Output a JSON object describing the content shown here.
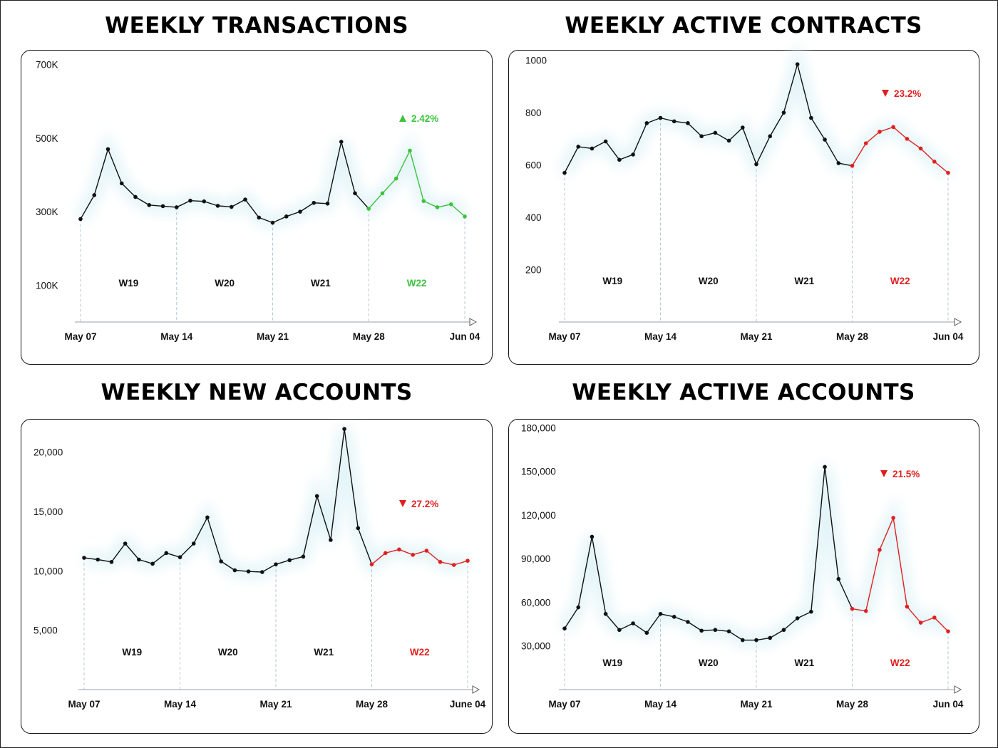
{
  "colors": {
    "line": "#111111",
    "up": "#3cc23c",
    "down": "#e02020",
    "axis": "#aab4c0",
    "week_divider": "#b8c6d6"
  },
  "chart_data": [
    {
      "type": "line",
      "title": "WEEKLY TRANSACTIONS",
      "y_ticks": [
        {
          "value": 700000,
          "label": "700K"
        },
        {
          "value": 500000,
          "label": "500K"
        },
        {
          "value": 300000,
          "label": "300K"
        },
        {
          "value": 100000,
          "label": "100K"
        }
      ],
      "ylim": [
        0,
        740000
      ],
      "x_labels": [
        "May 07",
        "May 14",
        "May 21",
        "May 28",
        "Jun 04"
      ],
      "weeks": [
        "W19",
        "W20",
        "W21",
        "W22"
      ],
      "highlight_week": "W22",
      "change": {
        "direction": "up",
        "text": "2.42%"
      },
      "series": [
        {
          "values": [
            280000,
            345000,
            470000,
            377000,
            340000,
            318000,
            315000,
            312000,
            330000,
            328000,
            316000,
            313000,
            333000,
            284000,
            270000,
            287000,
            300000,
            324000,
            322000,
            490000,
            350000,
            308000,
            350000,
            390000,
            466000,
            329000,
            312000,
            320000,
            287000
          ]
        }
      ]
    },
    {
      "type": "line",
      "title": "WEEKLY ACTIVE CONTRACTS",
      "y_ticks": [
        {
          "value": 1000,
          "label": "1000"
        },
        {
          "value": 800,
          "label": "800"
        },
        {
          "value": 600,
          "label": "600"
        },
        {
          "value": 400,
          "label": "400"
        },
        {
          "value": 200,
          "label": "200"
        }
      ],
      "ylim": [
        0,
        1040
      ],
      "x_labels": [
        "May 07",
        "May 14",
        "May 21",
        "May 28",
        "Jun 04"
      ],
      "weeks": [
        "W19",
        "W20",
        "W21",
        "W22"
      ],
      "highlight_week": "W22",
      "change": {
        "direction": "down",
        "text": "23.2%"
      },
      "series": [
        {
          "values": [
            570,
            670,
            663,
            690,
            620,
            640,
            760,
            780,
            767,
            760,
            710,
            723,
            693,
            743,
            603,
            710,
            800,
            985,
            780,
            697,
            607,
            597,
            683,
            727,
            745,
            700,
            663,
            613,
            570
          ]
        }
      ]
    },
    {
      "type": "line",
      "title": "WEEKLY NEW ACCOUNTS",
      "y_ticks": [
        {
          "value": 20000,
          "label": "20,000"
        },
        {
          "value": 15000,
          "label": "15,000"
        },
        {
          "value": 10000,
          "label": "10,000"
        },
        {
          "value": 5000,
          "label": "5,000"
        }
      ],
      "ylim": [
        0,
        22800
      ],
      "x_labels": [
        "May 07",
        "May 14",
        "May 21",
        "May 28",
        "June 04"
      ],
      "weeks": [
        "W19",
        "W20",
        "W21",
        "W22"
      ],
      "highlight_week": "W22",
      "change": {
        "direction": "down",
        "text": "27.2%"
      },
      "series": [
        {
          "values": [
            11100,
            10950,
            10750,
            12300,
            10950,
            10600,
            11500,
            11150,
            12300,
            14500,
            10800,
            10050,
            9950,
            9900,
            10550,
            10900,
            11200,
            16300,
            12600,
            21950,
            13600,
            10550,
            11500,
            11800,
            11350,
            11700,
            10750,
            10500,
            10850
          ]
        }
      ]
    },
    {
      "type": "line",
      "title": "WEEKLY ACTIVE ACCOUNTS",
      "y_ticks": [
        {
          "value": 180000,
          "label": "180,000"
        },
        {
          "value": 150000,
          "label": "150,000"
        },
        {
          "value": 120000,
          "label": "120,000"
        },
        {
          "value": 90000,
          "label": "90,000"
        },
        {
          "value": 60000,
          "label": "60,000"
        },
        {
          "value": 30000,
          "label": "30,000"
        }
      ],
      "ylim": [
        0,
        186000
      ],
      "x_labels": [
        "May 07",
        "May 14",
        "May 21",
        "May 28",
        "Jun 04"
      ],
      "weeks": [
        "W19",
        "W20",
        "W21",
        "W22"
      ],
      "highlight_week": "W22",
      "change": {
        "direction": "down",
        "text": "21.5%"
      },
      "series": [
        {
          "values": [
            42000,
            56500,
            105000,
            52000,
            41000,
            45500,
            39000,
            52000,
            50000,
            46500,
            40500,
            41000,
            40000,
            34000,
            34000,
            35500,
            41000,
            49000,
            53500,
            153000,
            76000,
            55500,
            54000,
            96000,
            118000,
            57000,
            46000,
            49500,
            40000
          ]
        }
      ]
    }
  ]
}
